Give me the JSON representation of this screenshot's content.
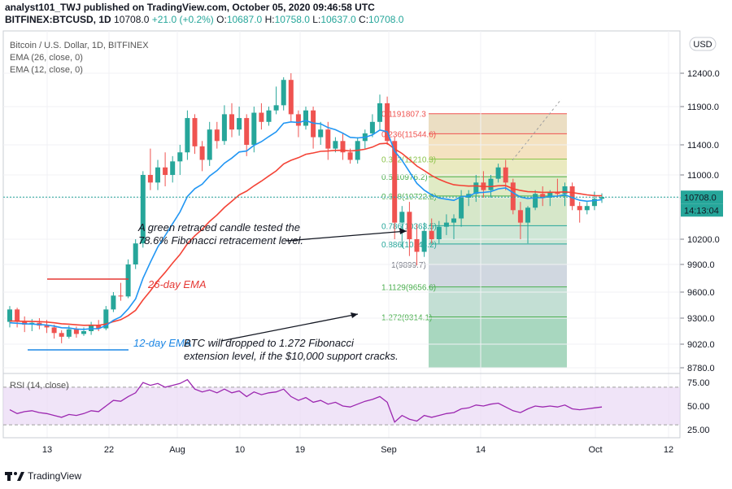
{
  "header": {
    "line1": "analyst101_TWJ published on TradingView.com, October 05, 2020 09:46:58 UTC",
    "symbol": "BITFINEX:BTCUSD, 1D",
    "price": "10708.0",
    "change": "+21.0 (+0.2%)",
    "o_label": "O:",
    "o": "10687.0",
    "h_label": "H:",
    "h": "10758.0",
    "l_label": "L:",
    "l": "10637.0",
    "c_label": "C:",
    "c": "10708.0"
  },
  "legend": {
    "title": "Bitcoin / U.S. Dollar, 1D, BITFINEX",
    "ema26": "EMA (26, close, 0)",
    "ema12": "EMA (12, close, 0)",
    "rsi": "RSI (14, close)"
  },
  "currency": "USD",
  "price_tag": "10708.0",
  "timer_tag": "14:13:04",
  "footer": {
    "brand": "TradingView"
  },
  "colors": {
    "up": "#26a69a",
    "down": "#ef5350",
    "ema12": "#2196f3",
    "ema26": "#f44336",
    "rsi": "#9c27b0"
  },
  "chart_data": {
    "type": "candlestick",
    "price_axis": [
      "12400.0",
      "11900.0",
      "11400.0",
      "11000.0",
      "10700.0",
      "10200.0",
      "9900.0",
      "9600.0",
      "9300.0",
      "9020.0",
      "8780.0"
    ],
    "x_ticks": [
      "13",
      "22",
      "Aug",
      "10",
      "19",
      "Sep",
      "14",
      "Oct",
      "12"
    ],
    "ylim": [
      8700,
      12650
    ],
    "candles_from": "2020-07-08",
    "candles": [
      [
        9260,
        9440,
        9200,
        9400
      ],
      [
        9400,
        9420,
        9200,
        9260
      ],
      [
        9260,
        9320,
        9150,
        9230
      ],
      [
        9230,
        9290,
        9160,
        9250
      ],
      [
        9250,
        9300,
        9180,
        9220
      ],
      [
        9220,
        9280,
        9140,
        9200
      ],
      [
        9200,
        9230,
        9080,
        9140
      ],
      [
        9140,
        9170,
        9030,
        9100
      ],
      [
        9100,
        9220,
        9080,
        9180
      ],
      [
        9180,
        9210,
        9090,
        9130
      ],
      [
        9130,
        9200,
        9110,
        9160
      ],
      [
        9160,
        9260,
        9120,
        9230
      ],
      [
        9230,
        9280,
        9160,
        9190
      ],
      [
        9190,
        9440,
        9170,
        9400
      ],
      [
        9400,
        9600,
        9370,
        9560
      ],
      [
        9560,
        9700,
        9500,
        9550
      ],
      [
        9550,
        9960,
        9530,
        9900
      ],
      [
        9900,
        10200,
        9850,
        10150
      ],
      [
        10150,
        11050,
        10100,
        11000
      ],
      [
        11000,
        11350,
        10800,
        10900
      ],
      [
        10900,
        11200,
        10800,
        11100
      ],
      [
        11100,
        11300,
        10850,
        11000
      ],
      [
        11000,
        11250,
        10900,
        11180
      ],
      [
        11180,
        11400,
        11000,
        11300
      ],
      [
        11300,
        11850,
        11200,
        11750
      ],
      [
        11750,
        11800,
        11280,
        11380
      ],
      [
        11380,
        11450,
        11050,
        11200
      ],
      [
        11200,
        11700,
        11120,
        11600
      ],
      [
        11600,
        11700,
        11350,
        11450
      ],
      [
        11450,
        11920,
        11400,
        11800
      ],
      [
        11800,
        11950,
        11500,
        11600
      ],
      [
        11600,
        11900,
        11520,
        11750
      ],
      [
        11750,
        11800,
        11250,
        11400
      ],
      [
        11400,
        11900,
        11300,
        11820
      ],
      [
        11820,
        11950,
        11600,
        11700
      ],
      [
        11700,
        11900,
        11650,
        11850
      ],
      [
        11850,
        12200,
        11800,
        11920
      ],
      [
        11920,
        12460,
        11850,
        12300
      ],
      [
        12300,
        12400,
        11700,
        11800
      ],
      [
        11800,
        11850,
        11500,
        11650
      ],
      [
        11650,
        11900,
        11600,
        11850
      ],
      [
        11850,
        11900,
        11350,
        11500
      ],
      [
        11500,
        11700,
        11400,
        11600
      ],
      [
        11600,
        11700,
        11200,
        11350
      ],
      [
        11350,
        11500,
        11300,
        11450
      ],
      [
        11450,
        11550,
        11200,
        11300
      ],
      [
        11300,
        11350,
        11150,
        11200
      ],
      [
        11200,
        11500,
        11150,
        11450
      ],
      [
        11450,
        11600,
        11350,
        11550
      ],
      [
        11550,
        11800,
        11500,
        11700
      ],
      [
        11700,
        12080,
        11600,
        11950
      ],
      [
        11950,
        12050,
        11400,
        11450
      ],
      [
        11450,
        11500,
        10200,
        10400
      ],
      [
        10400,
        10600,
        10100,
        10530
      ],
      [
        10530,
        10650,
        10000,
        10200
      ],
      [
        10200,
        10380,
        9890,
        10050
      ],
      [
        10050,
        10400,
        9990,
        10300
      ],
      [
        10300,
        10450,
        10150,
        10200
      ],
      [
        10200,
        10420,
        10150,
        10350
      ],
      [
        10350,
        10500,
        10250,
        10400
      ],
      [
        10400,
        10500,
        10200,
        10450
      ],
      [
        10450,
        10800,
        10350,
        10700
      ],
      [
        10700,
        10800,
        10600,
        10750
      ],
      [
        10750,
        11000,
        10650,
        10900
      ],
      [
        10900,
        11050,
        10700,
        10800
      ],
      [
        10800,
        11000,
        10700,
        10950
      ],
      [
        10950,
        11150,
        10900,
        11100
      ],
      [
        11100,
        11200,
        10800,
        10900
      ],
      [
        10900,
        10950,
        10500,
        10550
      ],
      [
        10550,
        10650,
        10200,
        10400
      ],
      [
        10400,
        10600,
        10150,
        10580
      ],
      [
        10580,
        10800,
        10550,
        10750
      ],
      [
        10750,
        10850,
        10600,
        10700
      ],
      [
        10700,
        10800,
        10600,
        10780
      ],
      [
        10780,
        10950,
        10700,
        10750
      ],
      [
        10750,
        10900,
        10600,
        10850
      ],
      [
        10850,
        10900,
        10550,
        10600
      ],
      [
        10600,
        10650,
        10400,
        10550
      ],
      [
        10550,
        10650,
        10500,
        10600
      ],
      [
        10600,
        10780,
        10550,
        10687
      ],
      [
        10687,
        10758,
        10637,
        10708
      ]
    ],
    "ema12": [
      9250,
      9245,
      9240,
      9236,
      9232,
      9226,
      9214,
      9197,
      9194,
      9183,
      9179,
      9186,
      9187,
      9220,
      9276,
      9316,
      9406,
      9521,
      9749,
      9926,
      10107,
      10244,
      10387,
      10528,
      10716,
      10819,
      10878,
      10986,
      11057,
      11156,
      11224,
      11305,
      11318,
      11394,
      11441,
      11507,
      11570,
      11682,
      11700,
      11692,
      11717,
      11684,
      11675,
      11625,
      11598,
      11552,
      11498,
      11490,
      11499,
      11530,
      11594,
      11572,
      11316,
      11194,
      11042,
      10890,
      10800,
      10737,
      10697,
      10682,
      10668,
      10714,
      10720,
      10765,
      10771,
      10780,
      10817,
      10830,
      10766,
      10709,
      10690,
      10701,
      10701,
      10717,
      10721,
      10740,
      10700,
      10670,
      10658,
      10666,
      10676
    ],
    "ema26": [
      9270,
      9268,
      9266,
      9264,
      9262,
      9258,
      9250,
      9240,
      9235,
      9228,
      9223,
      9224,
      9223,
      9236,
      9262,
      9283,
      9329,
      9390,
      9510,
      9613,
      9723,
      9814,
      9915,
      10018,
      10147,
      10241,
      10320,
      10415,
      10492,
      10582,
      10657,
      10737,
      10787,
      10856,
      10919,
      10987,
      11054,
      11146,
      11195,
      11229,
      11275,
      11292,
      11314,
      11318,
      11327,
      11328,
      11318,
      11327,
      11342,
      11370,
      11414,
      11420,
      11345,
      11285,
      11205,
      11119,
      11057,
      10993,
      10942,
      10903,
      10870,
      10861,
      10853,
      10856,
      10848,
      10847,
      10857,
      10860,
      10818,
      10795,
      10779,
      10777,
      10771,
      10772,
      10772,
      10777,
      10768,
      10752,
      10737,
      10728,
      10726
    ],
    "rsi": [
      46,
      42,
      44,
      45,
      43,
      42,
      40,
      38,
      41,
      40,
      42,
      45,
      44,
      50,
      56,
      55,
      60,
      64,
      75,
      72,
      74,
      70,
      72,
      74,
      78,
      68,
      65,
      67,
      64,
      68,
      64,
      66,
      60,
      65,
      62,
      64,
      65,
      68,
      60,
      56,
      59,
      54,
      56,
      52,
      54,
      50,
      49,
      52,
      55,
      57,
      60,
      54,
      33,
      40,
      36,
      34,
      40,
      38,
      40,
      42,
      43,
      47,
      48,
      51,
      50,
      52,
      53,
      49,
      45,
      43,
      47,
      50,
      49,
      50,
      49,
      51,
      47,
      46,
      47,
      48,
      49
    ],
    "fib_levels": [
      {
        "label": "0.1191807.3",
        "v": 11807.3,
        "c": "#ef5350"
      },
      {
        "label": "0.236(11544.6)",
        "v": 11544.6,
        "c": "#ef5350"
      },
      {
        "label": "0.382(11210.3)",
        "v": 11210.3,
        "c": "#8bc34a"
      },
      {
        "label": "0.5(10976.2)",
        "v": 10976.2,
        "c": "#4caf50"
      },
      {
        "label": "0.618(10722.2)",
        "v": 10722.2,
        "c": "#4caf50"
      },
      {
        "label": "0.786(10363.5)",
        "v": 10363.5,
        "c": "#26a69a"
      },
      {
        "label": "0.886(10143.2)",
        "v": 10143.2,
        "c": "#26a69a"
      },
      {
        "label": "1(9899.7)",
        "v": 9899.7,
        "c": "#787b86"
      },
      {
        "label": "1.1129(9656.6)",
        "v": 9656.6,
        "c": "#4caf50"
      },
      {
        "label": "1.272(9314.1)",
        "v": 9314.1,
        "c": "#4caf50"
      }
    ],
    "rsi_ticks": [
      "75.00",
      "50.00",
      "25.00"
    ],
    "annotations": [
      {
        "id": "a1",
        "line1": "A green retraced candle tested the",
        "line2": "78.6% Fibonacci retracement level.",
        "color": "#131722"
      },
      {
        "id": "a2",
        "text": "26-day EMA",
        "color": "#e53935"
      },
      {
        "id": "a3",
        "text": "12-day EMA",
        "color": "#1e88e5"
      },
      {
        "id": "a4",
        "line1": "BTC will dropped to 1.272 Fibonacci",
        "line2": "extension level, if the $10,000 support cracks.",
        "color": "#131722"
      }
    ]
  }
}
